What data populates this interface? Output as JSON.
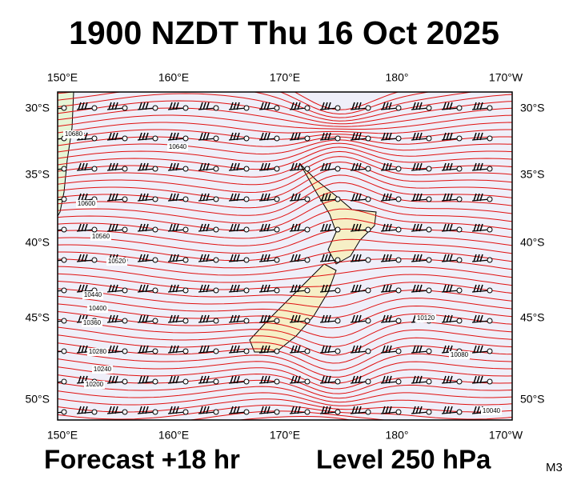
{
  "header": {
    "title": "1900 NZDT Thu 16 Oct 2025"
  },
  "axes": {
    "top": [
      "150°E",
      "160°E",
      "170°E",
      "180°",
      "170°W"
    ],
    "bottom": [
      "150°E",
      "160°E",
      "170°E",
      "180°",
      "170°W"
    ],
    "left": [
      "30°S",
      "35°S",
      "40°S",
      "45°S",
      "50°S"
    ],
    "right": [
      "30°S",
      "35°S",
      "40°S",
      "45°S",
      "50°S"
    ]
  },
  "contour_labels": [
    "10680",
    "10640",
    "10600",
    "10560",
    "10520",
    "10440",
    "10400",
    "10360",
    "10280",
    "10240",
    "10200",
    "10120",
    "10080",
    "10040"
  ],
  "footer": {
    "forecast": "Forecast +18 hr",
    "level": "Level 250 hPa",
    "model": "M3"
  }
}
